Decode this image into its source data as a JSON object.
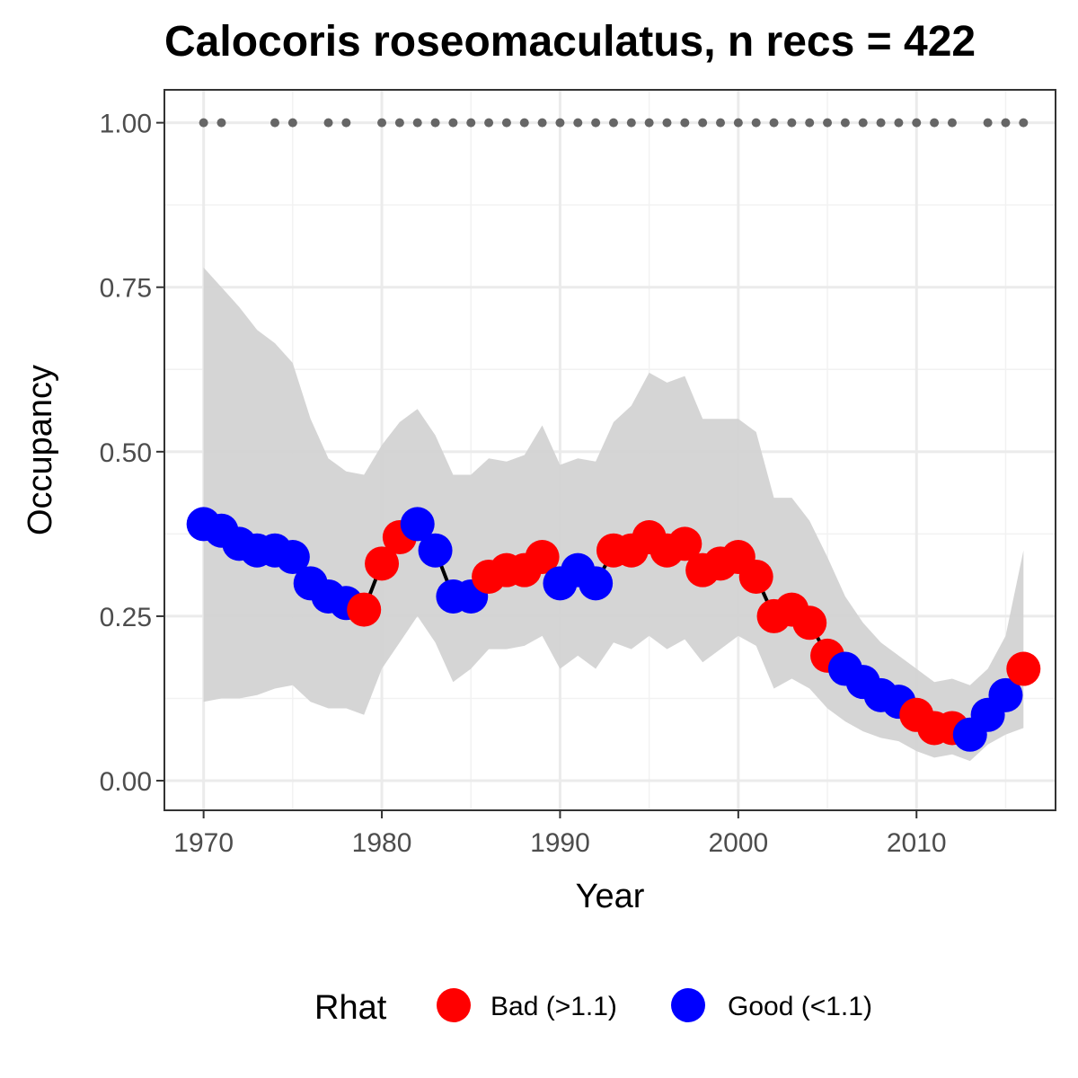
{
  "chart_data": {
    "type": "line",
    "title": "Calocoris roseomaculatus, n recs = 422",
    "xlabel": "Year",
    "ylabel": "Occupancy",
    "xlim": [
      1967.8,
      2017.8
    ],
    "ylim": [
      -0.045,
      1.05
    ],
    "x_ticks": [
      1970,
      1980,
      1990,
      2000,
      2010
    ],
    "x_tick_labels": [
      "1970",
      "1980",
      "1990",
      "2000",
      "2010"
    ],
    "y_ticks": [
      0,
      0.25,
      0.5,
      0.75,
      1.0
    ],
    "y_tick_labels": [
      "0.00",
      "0.25",
      "0.50",
      "0.75",
      "1.00"
    ],
    "grid": true,
    "legend": {
      "title": "Rhat",
      "position": "bottom",
      "entries": [
        {
          "label": "Bad (>1.1)",
          "color": "#ff0000"
        },
        {
          "label": "Good (<1.1)",
          "color": "#0000ff"
        }
      ]
    },
    "colors": {
      "bad": "#ff0000",
      "good": "#0000ff",
      "ribbon": "#d3d3d3",
      "line": "#000000",
      "record_dots": "#666666"
    },
    "x": [
      1970,
      1971,
      1972,
      1973,
      1974,
      1975,
      1976,
      1977,
      1978,
      1979,
      1980,
      1981,
      1982,
      1983,
      1984,
      1985,
      1986,
      1987,
      1988,
      1989,
      1990,
      1991,
      1992,
      1993,
      1994,
      1995,
      1996,
      1997,
      1998,
      1999,
      2000,
      2001,
      2002,
      2003,
      2004,
      2005,
      2006,
      2007,
      2008,
      2009,
      2010,
      2011,
      2012,
      2013,
      2014,
      2015,
      2016
    ],
    "occupancy": [
      0.39,
      0.38,
      0.36,
      0.35,
      0.35,
      0.34,
      0.3,
      0.28,
      0.27,
      0.26,
      0.33,
      0.37,
      0.39,
      0.35,
      0.28,
      0.28,
      0.31,
      0.32,
      0.32,
      0.34,
      0.3,
      0.32,
      0.3,
      0.35,
      0.35,
      0.37,
      0.35,
      0.36,
      0.32,
      0.33,
      0.34,
      0.31,
      0.25,
      0.26,
      0.24,
      0.19,
      0.17,
      0.15,
      0.13,
      0.12,
      0.1,
      0.08,
      0.08,
      0.07,
      0.1,
      0.13,
      0.17
    ],
    "lower_ci": [
      0.12,
      0.125,
      0.125,
      0.13,
      0.14,
      0.145,
      0.12,
      0.11,
      0.11,
      0.1,
      0.17,
      0.21,
      0.25,
      0.21,
      0.15,
      0.17,
      0.2,
      0.2,
      0.205,
      0.22,
      0.17,
      0.19,
      0.17,
      0.21,
      0.2,
      0.22,
      0.2,
      0.215,
      0.18,
      0.2,
      0.22,
      0.205,
      0.14,
      0.155,
      0.14,
      0.11,
      0.09,
      0.075,
      0.065,
      0.06,
      0.045,
      0.035,
      0.04,
      0.03,
      0.055,
      0.07,
      0.08
    ],
    "upper_ci": [
      0.78,
      0.75,
      0.72,
      0.685,
      0.665,
      0.635,
      0.55,
      0.49,
      0.47,
      0.465,
      0.51,
      0.545,
      0.565,
      0.525,
      0.465,
      0.465,
      0.49,
      0.485,
      0.495,
      0.54,
      0.48,
      0.49,
      0.485,
      0.545,
      0.57,
      0.62,
      0.605,
      0.615,
      0.55,
      0.55,
      0.55,
      0.53,
      0.43,
      0.43,
      0.395,
      0.34,
      0.28,
      0.24,
      0.21,
      0.19,
      0.17,
      0.15,
      0.155,
      0.145,
      0.17,
      0.22,
      0.35
    ],
    "rhat_status": [
      "good",
      "good",
      "good",
      "good",
      "good",
      "good",
      "good",
      "good",
      "good",
      "bad",
      "bad",
      "bad",
      "good",
      "good",
      "good",
      "good",
      "bad",
      "bad",
      "bad",
      "bad",
      "good",
      "good",
      "good",
      "bad",
      "bad",
      "bad",
      "bad",
      "bad",
      "bad",
      "bad",
      "bad",
      "bad",
      "bad",
      "bad",
      "bad",
      "bad",
      "good",
      "good",
      "good",
      "good",
      "bad",
      "bad",
      "bad",
      "good",
      "good",
      "good",
      "bad"
    ],
    "record_years": [
      1970,
      1971,
      1974,
      1975,
      1977,
      1978,
      1980,
      1981,
      1982,
      1983,
      1984,
      1985,
      1986,
      1987,
      1988,
      1989,
      1990,
      1991,
      1992,
      1993,
      1994,
      1995,
      1996,
      1997,
      1998,
      1999,
      2000,
      2001,
      2002,
      2003,
      2004,
      2005,
      2006,
      2007,
      2008,
      2009,
      2010,
      2011,
      2012,
      2014,
      2015,
      2016
    ],
    "record_value": 1.0
  }
}
